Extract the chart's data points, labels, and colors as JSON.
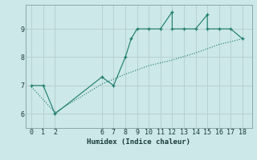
{
  "xlabel": "Humidex (Indice chaleur)",
  "bg_color": "#cce8e8",
  "grid_color": "#b8d0d0",
  "line_color": "#1a7a6a",
  "xlim": [
    -0.5,
    18.8
  ],
  "ylim": [
    5.5,
    9.85
  ],
  "xticks": [
    0,
    1,
    2,
    6,
    7,
    8,
    9,
    10,
    11,
    12,
    13,
    14,
    15,
    16,
    17,
    18
  ],
  "yticks": [
    6,
    7,
    8,
    9
  ],
  "line1_x": [
    0,
    1,
    2,
    6,
    7,
    8,
    8.5,
    9,
    10,
    11,
    12,
    12,
    13,
    14,
    15,
    15,
    16,
    17,
    18
  ],
  "line1_y": [
    7.0,
    7.0,
    6.0,
    7.3,
    7.0,
    8.0,
    8.65,
    9.0,
    9.0,
    9.0,
    9.6,
    9.0,
    9.0,
    9.0,
    9.5,
    9.0,
    9.0,
    9.0,
    8.65
  ],
  "line2_x": [
    0,
    2,
    6,
    8,
    10,
    12,
    14,
    16,
    18
  ],
  "line2_y": [
    6.95,
    6.05,
    7.05,
    7.4,
    7.7,
    7.9,
    8.15,
    8.45,
    8.65
  ]
}
